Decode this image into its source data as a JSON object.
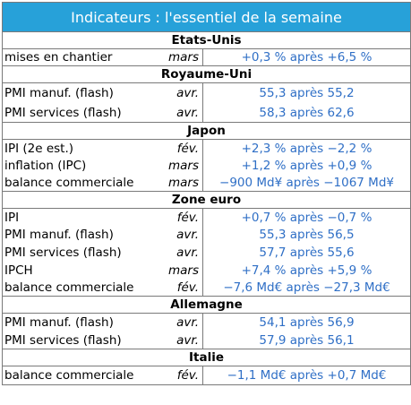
{
  "title": "Indicateurs : l'essentiel de la semaine",
  "sections": [
    {
      "name": "Etats-Unis",
      "rows": [
        {
          "indicator": "mises en chantier",
          "period": "mars",
          "value": "+0,3 % après +6,5 %"
        }
      ]
    },
    {
      "name": "Royaume-Uni",
      "rows": [
        {
          "indicator": "PMI manuf. (flash)",
          "period": "avr.",
          "value": "55,3 après 55,2"
        },
        {
          "indicator": "PMI services (flash)",
          "period": "avr.",
          "value": "58,3 après 62,6"
        }
      ]
    },
    {
      "name": "Japon",
      "rows": [
        {
          "indicator": "IPI (2e est.)",
          "period": "fév.",
          "value": "+2,3 % après −2,2 %"
        },
        {
          "indicator": "inflation (IPC)",
          "period": "mars",
          "value": "+1,2 % après +0,9 %"
        },
        {
          "indicator": "balance commerciale",
          "period": "mars",
          "value": "−900 Md¥ après −1067 Md¥"
        }
      ]
    },
    {
      "name": "Zone euro",
      "rows": [
        {
          "indicator": "IPI",
          "period": "fév.",
          "value": "+0,7 % après −0,7 %"
        },
        {
          "indicator": "PMI manuf. (flash)",
          "period": "avr.",
          "value": "55,3 après 56,5"
        },
        {
          "indicator": "PMI services (flash)",
          "period": "avr.",
          "value": "57,7 après 55,6"
        },
        {
          "indicator": "IPCH",
          "period": "mars",
          "value": "+7,4 % après +5,9 %"
        },
        {
          "indicator": "balance commerciale",
          "period": "fév.",
          "value": "−7,6 Md€ après −27,3 Md€"
        }
      ]
    },
    {
      "name": "Allemagne",
      "rows": [
        {
          "indicator": "PMI manuf. (flash)",
          "period": "avr.",
          "value": "54,1 après 56,9"
        },
        {
          "indicator": "PMI services (flash)",
          "period": "avr.",
          "value": "57,9 après 56,1"
        }
      ]
    },
    {
      "name": "Italie",
      "rows": [
        {
          "indicator": "balance commerciale",
          "period": "fév.",
          "value": "−1,1 Md€ après +0,7 Md€"
        }
      ]
    }
  ],
  "colors": {
    "header_bg": "#27a1d9",
    "header_text": "#ffffff",
    "value_text": "#2f6fc6",
    "border": "#7a7a7a"
  }
}
